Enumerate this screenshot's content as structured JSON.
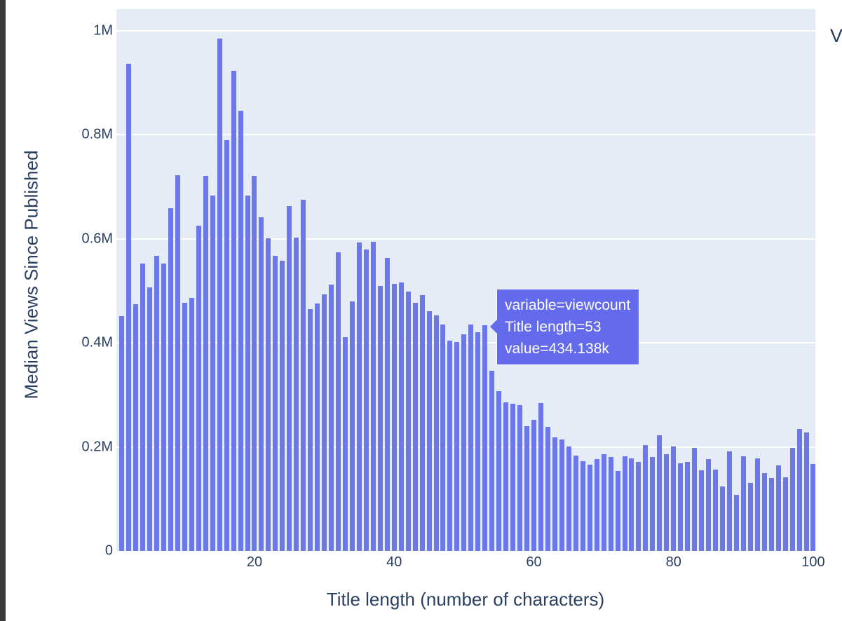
{
  "window": {
    "left_strip_color": "#3a3a3c"
  },
  "legend": {
    "clipped_text": "V"
  },
  "tooltip": {
    "lines": {
      "variable": "variable=viewcount",
      "title_length": "Title length=53",
      "value": "value=434.138k"
    },
    "bg_color": "#636bec",
    "text_color": "#ffffff",
    "hovered_bar": {
      "title_length": 53,
      "value": 434138,
      "value_label": "434.138k"
    }
  },
  "chart_data": {
    "type": "bar",
    "title": "",
    "xlabel": "Title length (number of characters)",
    "ylabel": "Median Views Since Published",
    "series_name": "viewcount",
    "x": {
      "start": 1,
      "end": 100,
      "step": 1
    },
    "values_k": [
      451,
      937,
      474,
      553,
      507,
      567,
      553,
      659,
      723,
      477,
      487,
      626,
      721,
      683,
      985,
      790,
      923,
      847,
      683,
      721,
      642,
      601,
      567,
      558,
      663,
      603,
      675,
      465,
      476,
      493,
      512,
      574,
      411,
      480,
      593,
      580,
      595,
      510,
      564,
      514,
      516,
      498,
      477,
      492,
      461,
      453,
      436,
      405,
      402,
      416,
      436,
      420,
      434.138,
      346,
      307,
      286,
      283,
      281,
      240,
      252,
      285,
      239,
      218,
      214,
      201,
      183,
      173,
      166,
      177,
      186,
      181,
      153,
      182,
      178,
      171,
      204,
      180,
      223,
      186,
      201,
      168,
      171,
      198,
      155,
      177,
      157,
      124,
      191,
      108,
      182,
      131,
      178,
      149,
      140,
      165,
      141,
      198,
      235,
      228,
      167
    ],
    "units": "views (thousands)",
    "y_ticks": [
      {
        "v_k": 0,
        "label": "0"
      },
      {
        "v_k": 200,
        "label": "0.2M"
      },
      {
        "v_k": 400,
        "label": "0.4M"
      },
      {
        "v_k": 600,
        "label": "0.6M"
      },
      {
        "v_k": 800,
        "label": "0.8M"
      },
      {
        "v_k": 1000,
        "label": "1M"
      }
    ],
    "x_ticks": [
      {
        "v": 20,
        "label": "20"
      },
      {
        "v": 40,
        "label": "40"
      },
      {
        "v": 60,
        "label": "60"
      },
      {
        "v": 80,
        "label": "80"
      },
      {
        "v": 100,
        "label": "100"
      }
    ],
    "ylim_k": [
      0,
      1042
    ],
    "grid": true,
    "legend_position": "right-clipped",
    "bar_color": "#6c77ea",
    "plot_bg": "#e5ecf6",
    "grid_color": "#ffffff",
    "text_color": "#2a3f5f"
  }
}
